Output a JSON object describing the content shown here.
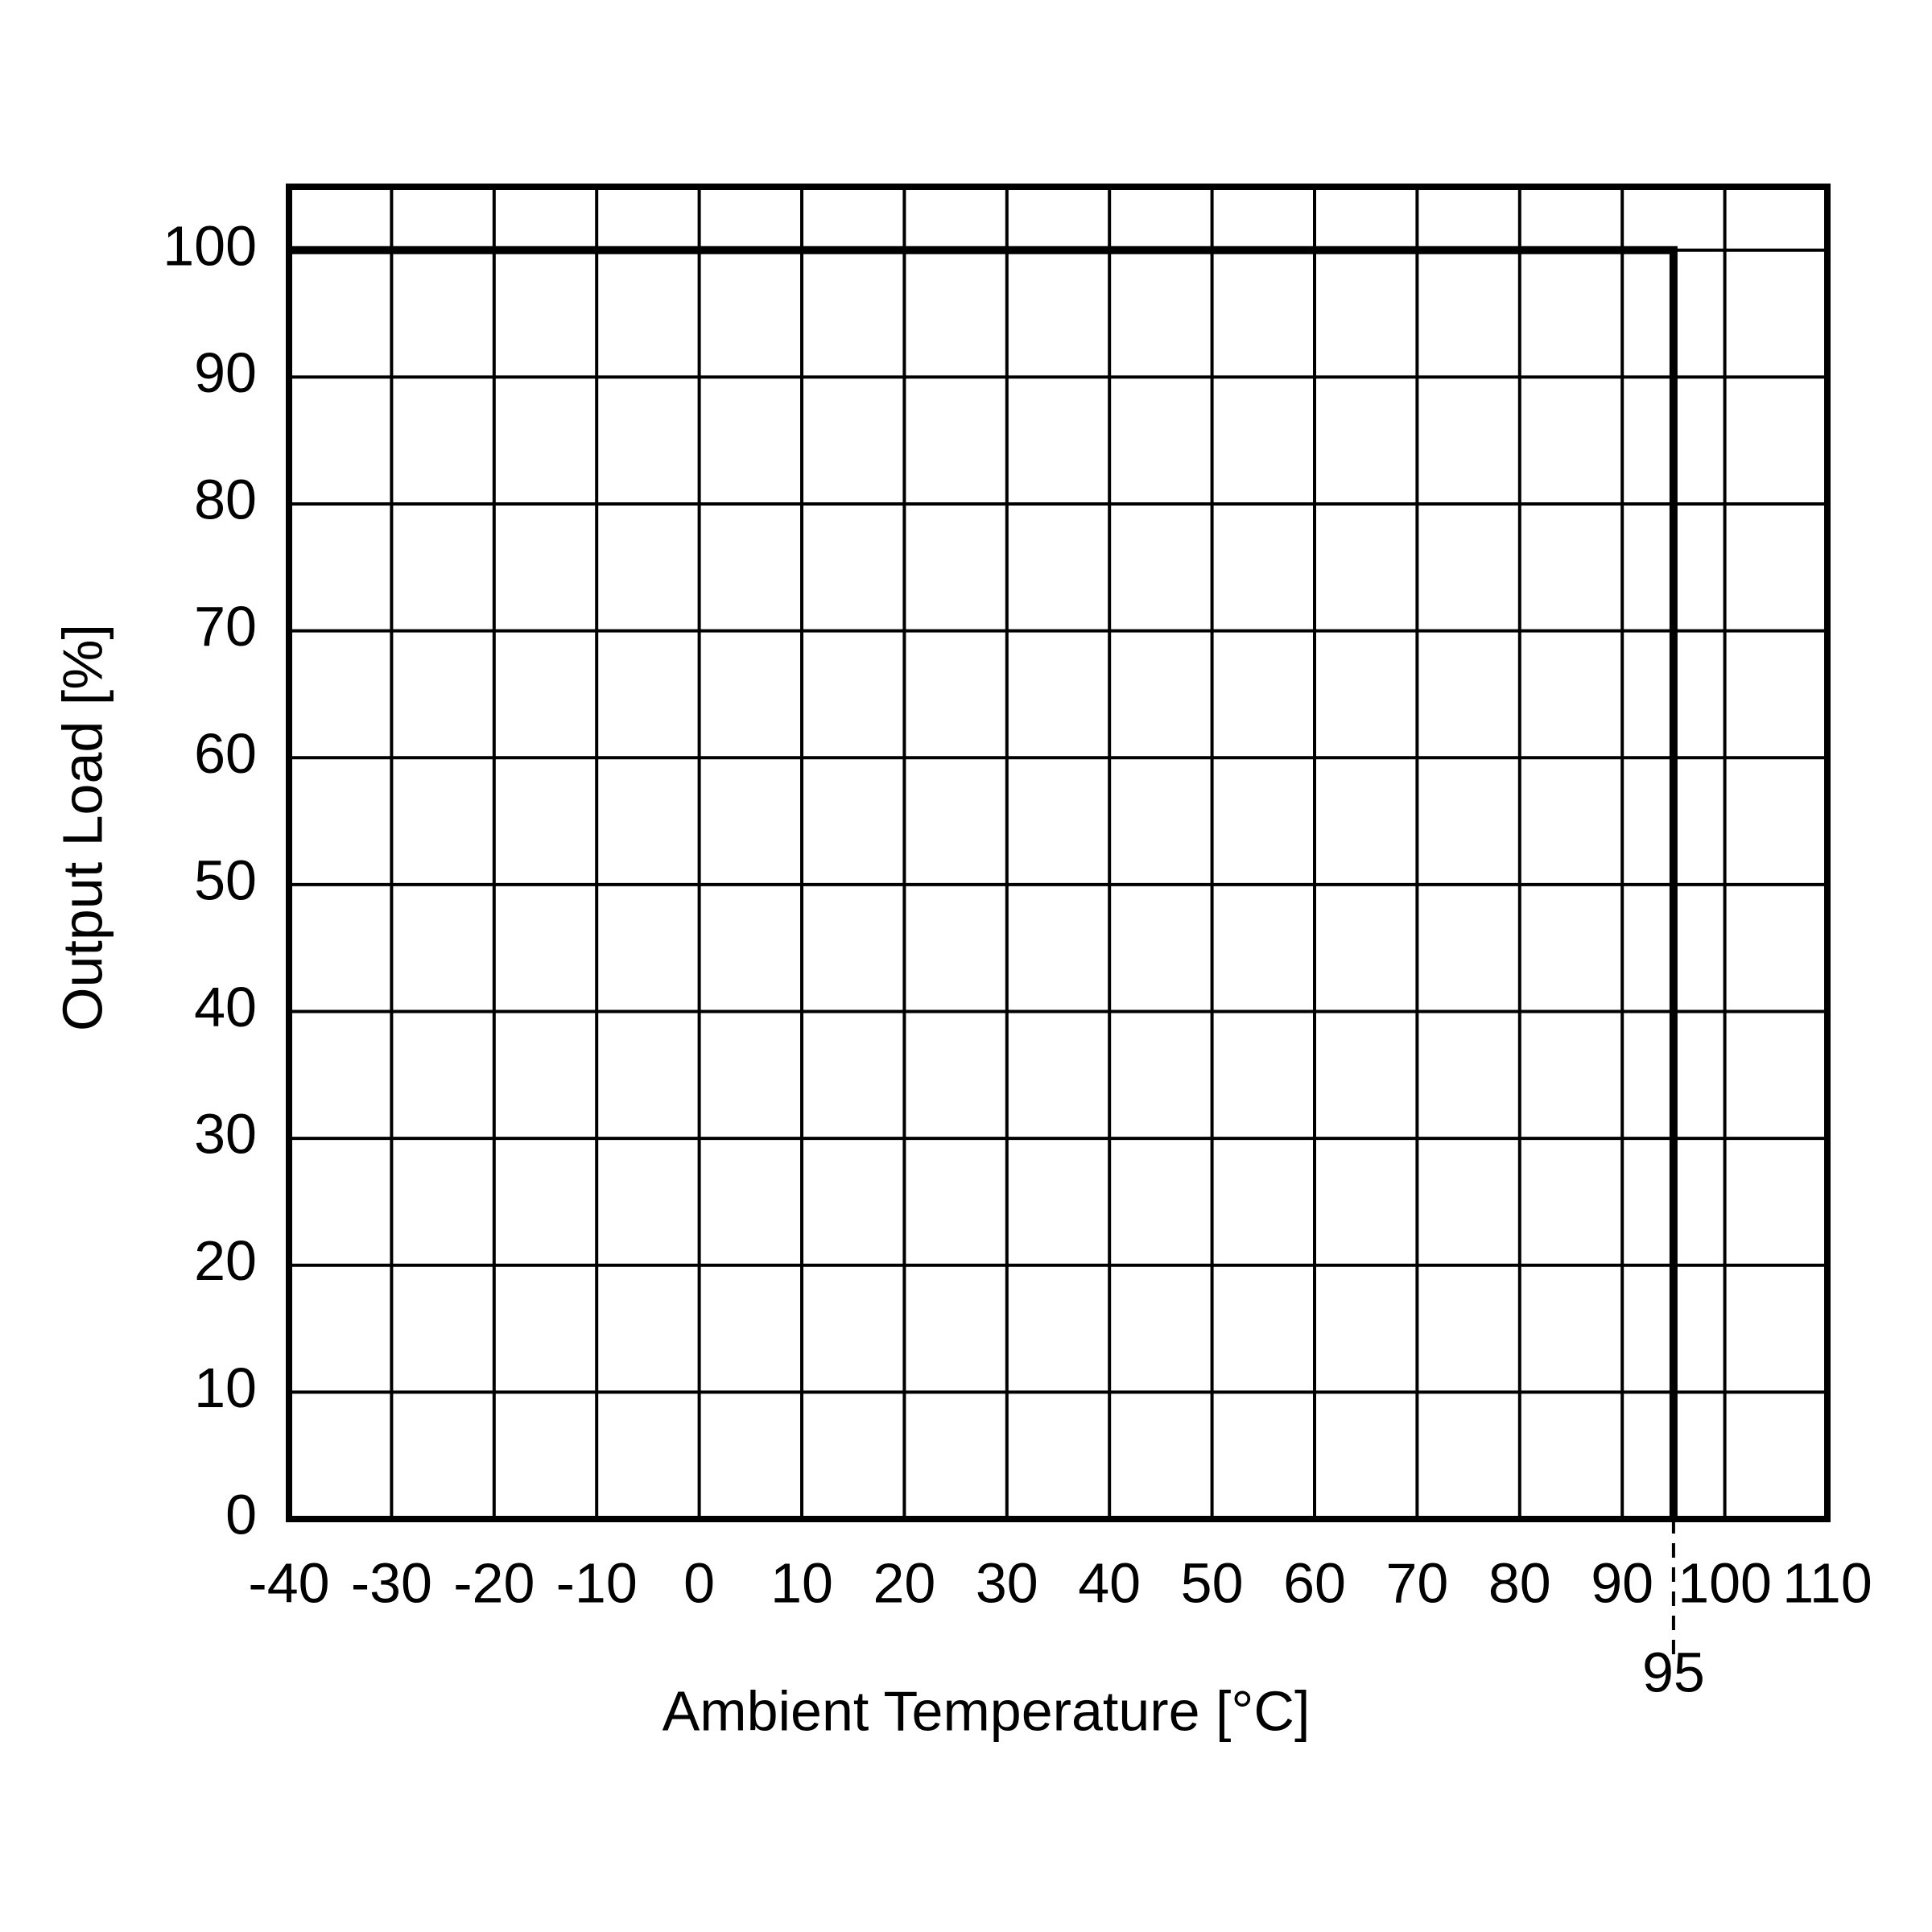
{
  "chart_data": {
    "type": "line",
    "xlabel": "Ambient Temperature [°C]",
    "ylabel": "Output Load [%]",
    "series": [
      {
        "color": "#000000",
        "x": [
          -40,
          95,
          95
        ],
        "values": [
          100,
          100,
          0
        ]
      }
    ],
    "xlim": [
      -40,
      110
    ],
    "xticks": [
      -40,
      -30,
      -20,
      -10,
      0,
      10,
      20,
      30,
      40,
      50,
      60,
      70,
      80,
      90,
      100,
      110
    ],
    "ylim": [
      0,
      105
    ],
    "yticks": [
      0,
      10,
      20,
      30,
      40,
      50,
      60,
      70,
      80,
      90,
      100
    ],
    "annotations": [
      95
    ],
    "grid": true
  }
}
